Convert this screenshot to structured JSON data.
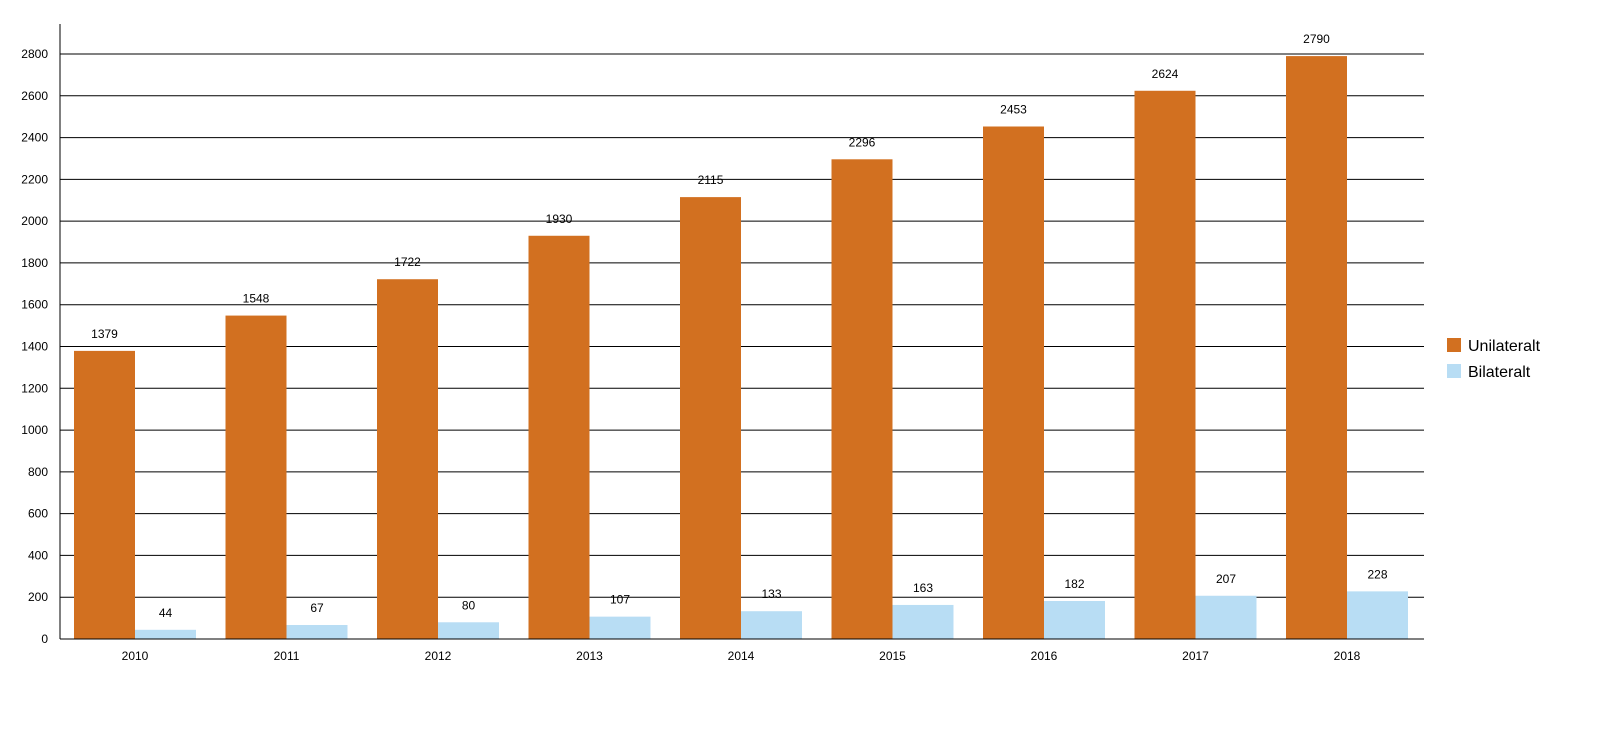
{
  "chart_data": {
    "type": "bar",
    "title": "",
    "xlabel": "",
    "ylabel": "",
    "categories": [
      "2010",
      "2011",
      "2012",
      "2013",
      "2014",
      "2015",
      "2016",
      "2017",
      "2018"
    ],
    "series": [
      {
        "name": "Unilateralt",
        "color": "#D27020",
        "values": [
          1379,
          1548,
          1722,
          1930,
          2115,
          2296,
          2453,
          2624,
          2790
        ]
      },
      {
        "name": "Bilateralt",
        "color": "#B8DDF4",
        "values": [
          44,
          67,
          80,
          107,
          133,
          163,
          182,
          207,
          228
        ]
      }
    ],
    "ylim": [
      0,
      2800
    ],
    "yticks": [
      0,
      200,
      400,
      600,
      800,
      1000,
      1200,
      1400,
      1600,
      1800,
      2000,
      2200,
      2400,
      2600,
      2800
    ],
    "grid": true,
    "legend": "right"
  }
}
